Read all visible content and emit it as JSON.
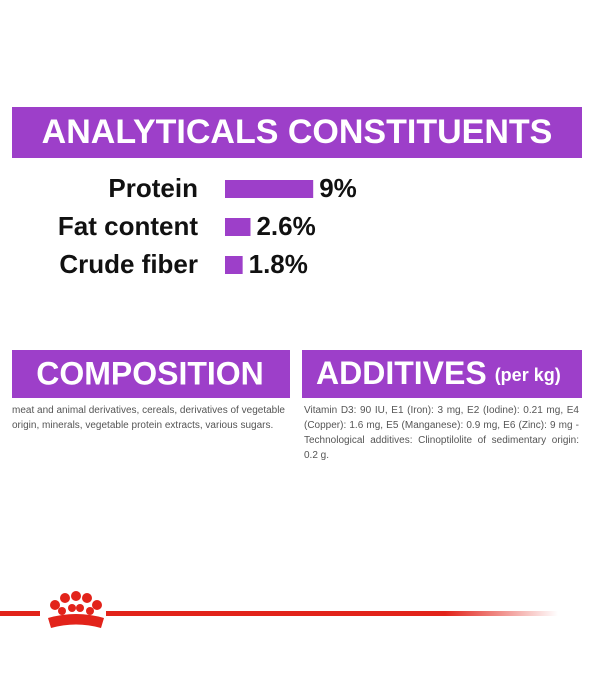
{
  "chart_data": {
    "type": "bar",
    "title": "ANALYTICALS CONSTITUENTS",
    "categories": [
      "Protein",
      "Fat content",
      "Crude fiber"
    ],
    "values": [
      9,
      2.6,
      1.8
    ],
    "value_labels": [
      "9%",
      "2.6%",
      "1.8%"
    ],
    "color": "#9d3fc9"
  },
  "composition": {
    "title": "COMPOSITION",
    "text": "meat and animal derivatives, cereals, derivatives of vegetable origin, minerals, vegetable protein extracts, various sugars."
  },
  "additives": {
    "title": "ADDITIVES",
    "unit": "(per kg)",
    "text": "Vitamin D3: 90 IU, E1 (Iron): 3 mg, E2 (Iodine): 0.21 mg, E4 (Copper): 1.6 mg, E5 (Manganese): 0.9 mg, E6 (Zinc): 9 mg - Technological additives: Clinoptilolite of sedimentary origin: 0.2 g."
  }
}
